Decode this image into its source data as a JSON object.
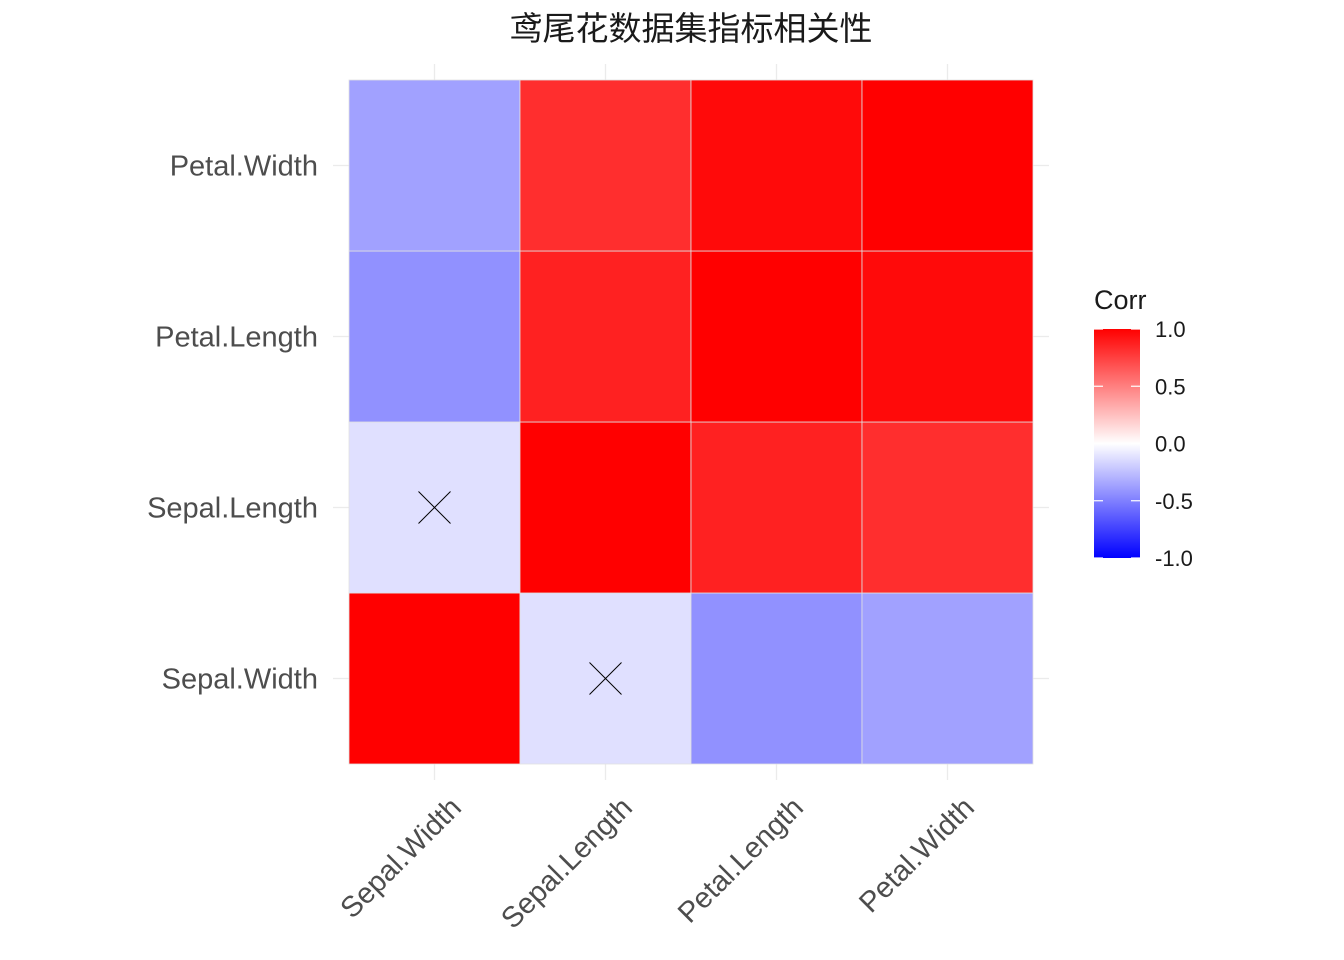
{
  "chart_data": {
    "type": "heatmap",
    "title": "鸢尾花数据集指标相关性",
    "x_categories": [
      "Sepal.Width",
      "Sepal.Length",
      "Petal.Length",
      "Petal.Width"
    ],
    "y_categories": [
      "Sepal.Width",
      "Sepal.Length",
      "Petal.Length",
      "Petal.Width"
    ],
    "cells": [
      {
        "x": "Sepal.Width",
        "y": "Sepal.Width",
        "value": 1.0,
        "insignificant": false
      },
      {
        "x": "Sepal.Length",
        "y": "Sepal.Width",
        "value": -0.12,
        "insignificant": true
      },
      {
        "x": "Petal.Length",
        "y": "Sepal.Width",
        "value": -0.43,
        "insignificant": false
      },
      {
        "x": "Petal.Width",
        "y": "Sepal.Width",
        "value": -0.37,
        "insignificant": false
      },
      {
        "x": "Sepal.Width",
        "y": "Sepal.Length",
        "value": -0.12,
        "insignificant": true
      },
      {
        "x": "Sepal.Length",
        "y": "Sepal.Length",
        "value": 1.0,
        "insignificant": false
      },
      {
        "x": "Petal.Length",
        "y": "Sepal.Length",
        "value": 0.87,
        "insignificant": false
      },
      {
        "x": "Petal.Width",
        "y": "Sepal.Length",
        "value": 0.82,
        "insignificant": false
      },
      {
        "x": "Sepal.Width",
        "y": "Petal.Length",
        "value": -0.43,
        "insignificant": false
      },
      {
        "x": "Sepal.Length",
        "y": "Petal.Length",
        "value": 0.87,
        "insignificant": false
      },
      {
        "x": "Petal.Length",
        "y": "Petal.Length",
        "value": 1.0,
        "insignificant": false
      },
      {
        "x": "Petal.Width",
        "y": "Petal.Length",
        "value": 0.96,
        "insignificant": false
      },
      {
        "x": "Sepal.Width",
        "y": "Petal.Width",
        "value": -0.37,
        "insignificant": false
      },
      {
        "x": "Sepal.Length",
        "y": "Petal.Width",
        "value": 0.82,
        "insignificant": false
      },
      {
        "x": "Petal.Length",
        "y": "Petal.Width",
        "value": 0.96,
        "insignificant": false
      },
      {
        "x": "Petal.Width",
        "y": "Petal.Width",
        "value": 1.0,
        "insignificant": false
      }
    ],
    "color_scale": {
      "low": "#0000FF",
      "mid": "#FFFFFF",
      "high": "#FF0000",
      "limits": [
        -1,
        1
      ]
    },
    "legend": {
      "title": "Corr",
      "placement": "right",
      "ticks": [
        1.0,
        0.5,
        0.0,
        -0.5,
        -1.0
      ],
      "tick_labels": [
        "1.0",
        "0.5",
        "0.0",
        "-0.5",
        "-1.0"
      ]
    },
    "xlabel": "",
    "ylabel": "",
    "grid": true
  }
}
